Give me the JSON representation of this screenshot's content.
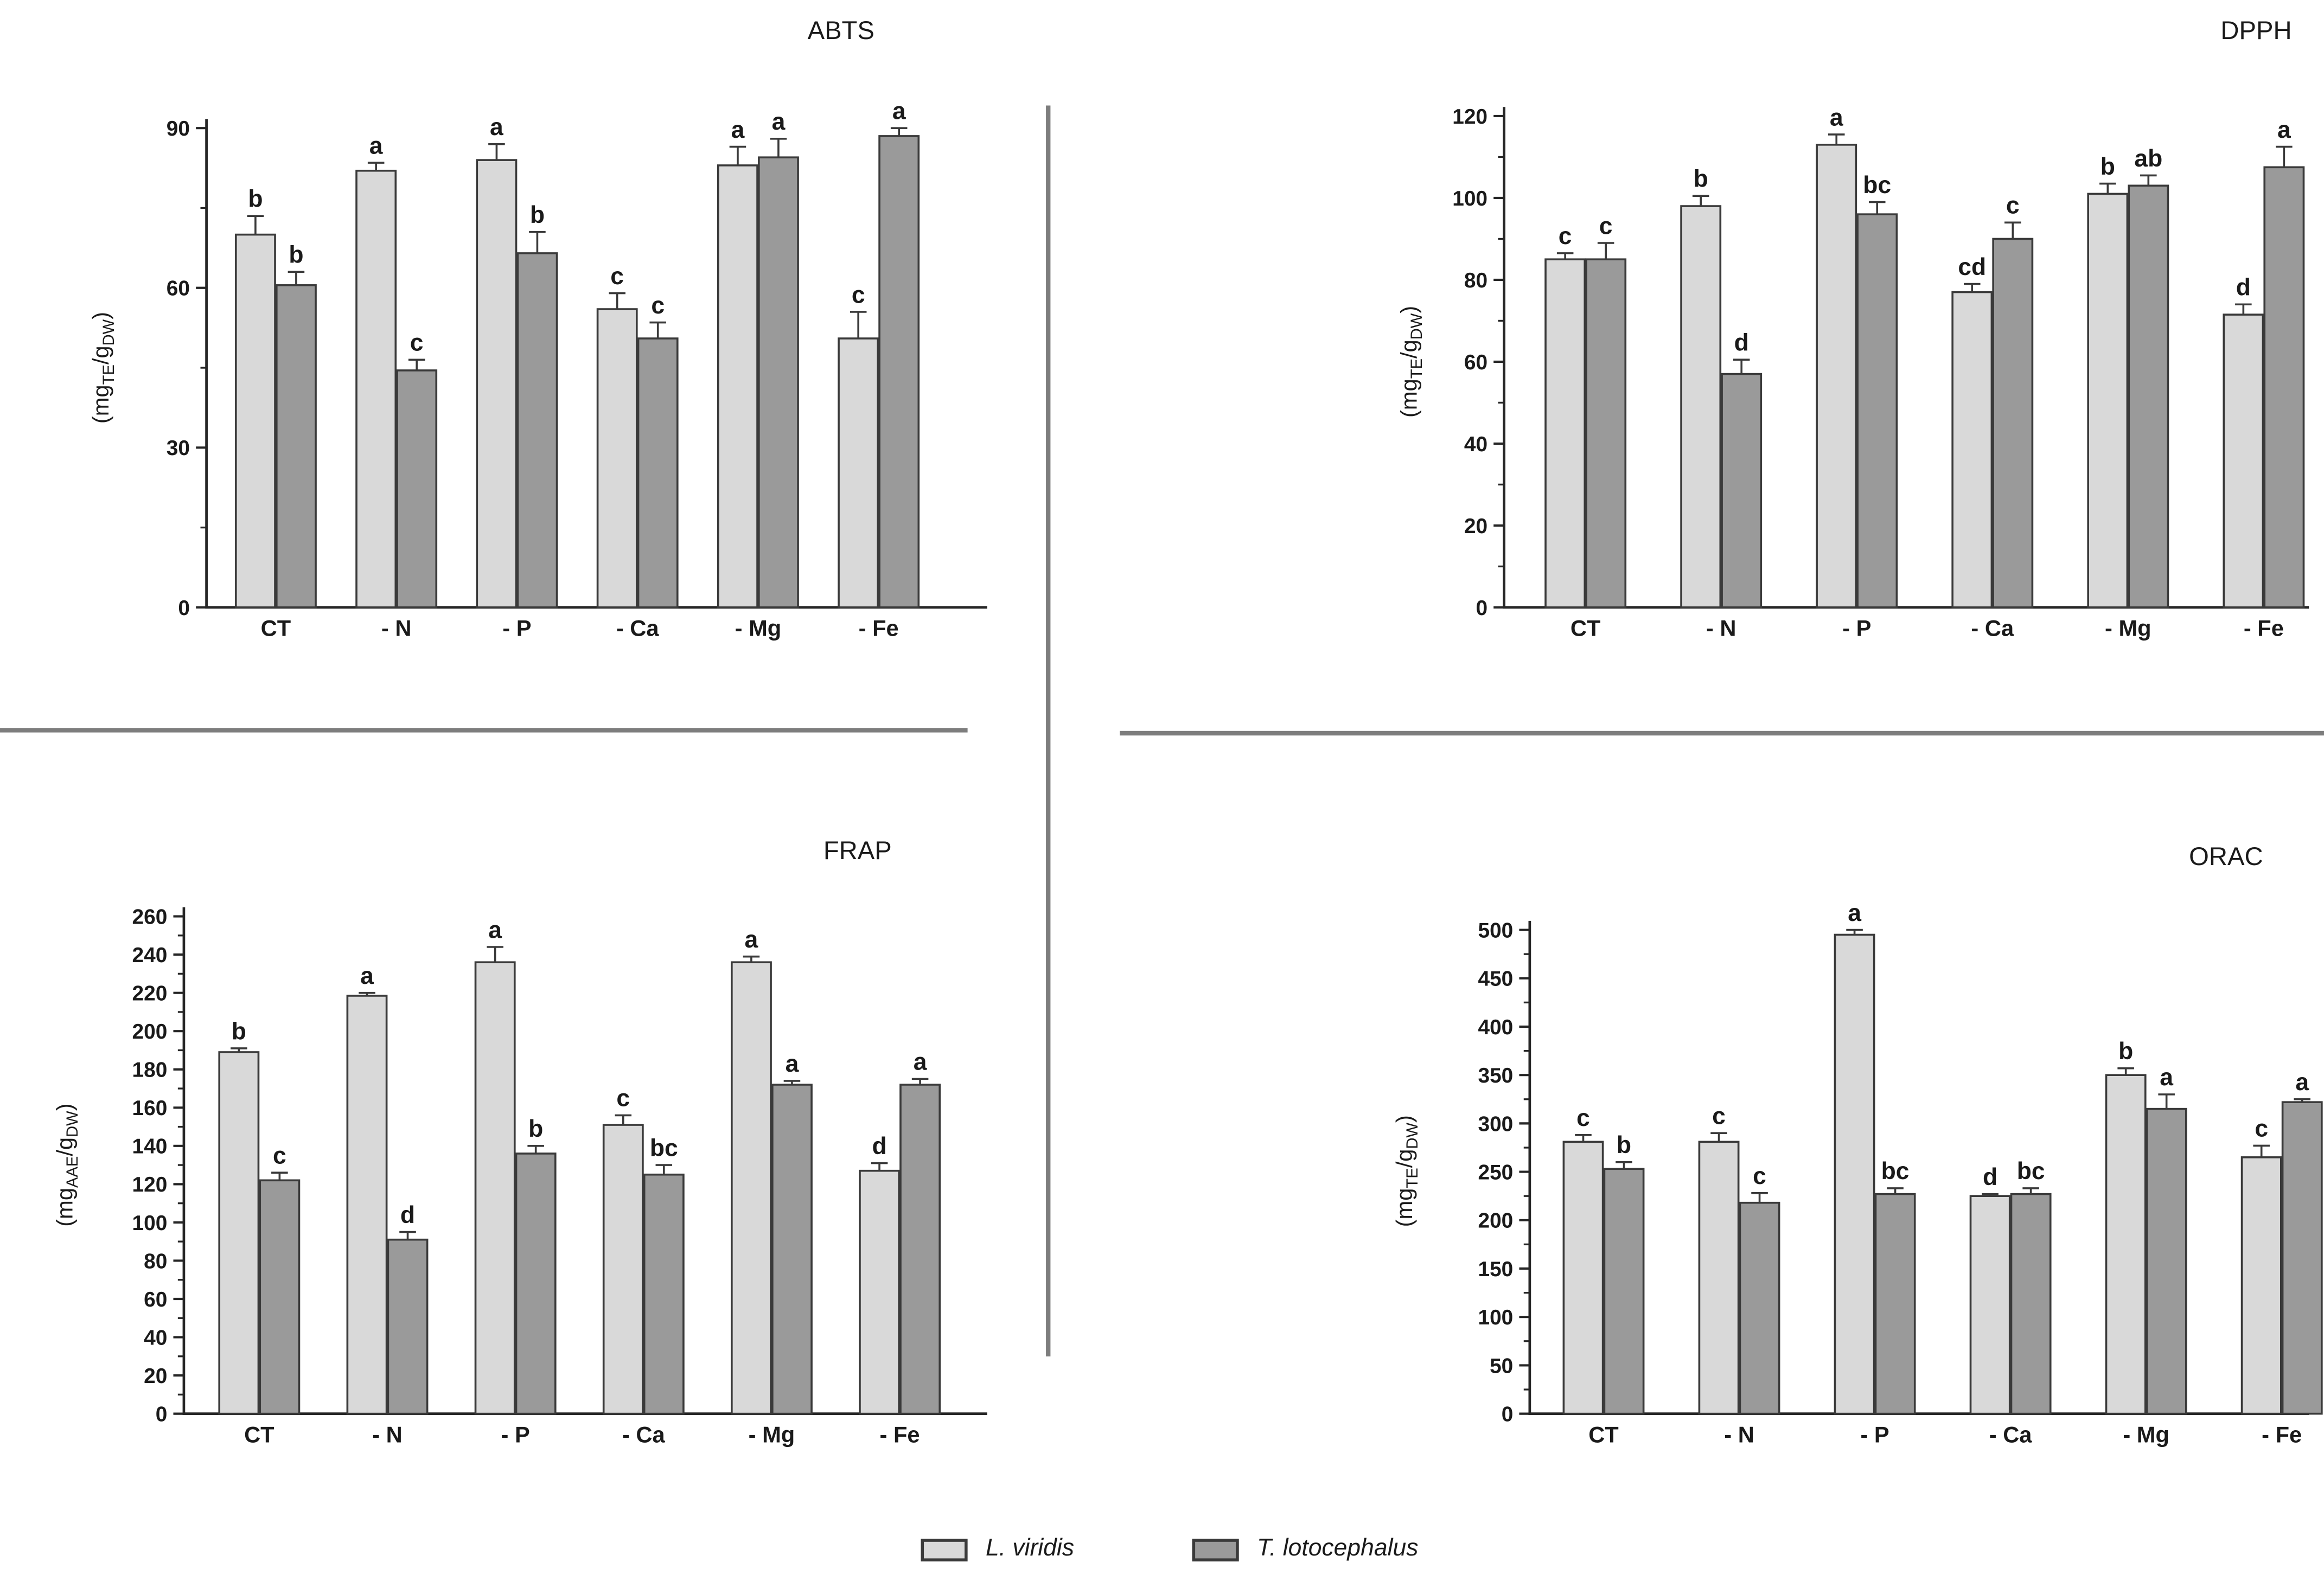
{
  "figure": {
    "background": "#ffffff",
    "bar_fill_light": "#d9d9d9",
    "bar_fill_dark": "#9a9a9a",
    "bar_border_color": "#3a3a3a",
    "axis_color": "#262626",
    "text_color": "#1a1a1a",
    "divider_color": "#7d7d7d"
  },
  "legend": {
    "items": [
      {
        "label": "L. viridis",
        "color": "#d9d9d9"
      },
      {
        "label": "T. lotocephalus",
        "color": "#9a9a9a"
      }
    ]
  },
  "chart_data": [
    {
      "id": "abts",
      "type": "bar",
      "title": "ABTS",
      "ylabel_parts": [
        {
          "text": "(mg"
        },
        {
          "text": "TE",
          "sub": true
        },
        {
          "text": "/g"
        },
        {
          "text": "DW",
          "sub": true
        },
        {
          "text": ")"
        }
      ],
      "categories": [
        "CT",
        "- N",
        "- P",
        "- Ca",
        "- Mg",
        "- Fe"
      ],
      "ylim": [
        0,
        90
      ],
      "ytick_step": 30,
      "ytick_minor": 15,
      "grid": false,
      "legend_position": "none",
      "series": [
        {
          "name": "L. viridis",
          "values": [
            70,
            82,
            84,
            56,
            83,
            50.5
          ],
          "errors": [
            3.5,
            1.5,
            3,
            3,
            3.5,
            5
          ],
          "letters": [
            "b",
            "a",
            "a",
            "c",
            "a",
            "c"
          ]
        },
        {
          "name": "T. lotocephalus",
          "values": [
            60.5,
            44.5,
            66.5,
            50.5,
            84.5,
            88.5
          ],
          "errors": [
            2.5,
            2,
            4,
            3,
            3.5,
            1.5
          ],
          "letters": [
            "b",
            "c",
            "b",
            "c",
            "a",
            "a"
          ]
        }
      ]
    },
    {
      "id": "dpph",
      "type": "bar",
      "title": "DPPH",
      "ylabel_parts": [
        {
          "text": "(mg"
        },
        {
          "text": "TE",
          "sub": true
        },
        {
          "text": "/g"
        },
        {
          "text": "DW",
          "sub": true
        },
        {
          "text": ")"
        }
      ],
      "categories": [
        "CT",
        "- N",
        "- P",
        "- Ca",
        "- Mg",
        "- Fe"
      ],
      "ylim": [
        0,
        120
      ],
      "ytick_step": 20,
      "ytick_minor": 10,
      "grid": false,
      "legend_position": "none",
      "series": [
        {
          "name": "L. viridis",
          "values": [
            85,
            98,
            113,
            77,
            101,
            71.5
          ],
          "errors": [
            1.5,
            2.5,
            2.5,
            2,
            2.5,
            2.5
          ],
          "letters": [
            "c",
            "b",
            "a",
            "cd",
            "b",
            "d"
          ]
        },
        {
          "name": "T. lotocephalus",
          "values": [
            85,
            57,
            96,
            90,
            103,
            107.5
          ],
          "errors": [
            4,
            3.5,
            3,
            4,
            2.5,
            5
          ],
          "letters": [
            "c",
            "d",
            "bc",
            "c",
            "ab",
            "a"
          ]
        }
      ]
    },
    {
      "id": "frap",
      "type": "bar",
      "title": "FRAP",
      "ylabel_parts": [
        {
          "text": "(mg"
        },
        {
          "text": "AAE",
          "sub": true
        },
        {
          "text": "/g"
        },
        {
          "text": "DW",
          "sub": true
        },
        {
          "text": ")"
        }
      ],
      "categories": [
        "CT",
        "- N",
        "- P",
        "- Ca",
        "- Mg",
        "- Fe"
      ],
      "ylim": [
        0,
        260
      ],
      "ytick_step": 20,
      "ytick_minor": 10,
      "grid": false,
      "legend_position": "none",
      "series": [
        {
          "name": "L. viridis",
          "values": [
            189,
            218.5,
            236,
            151,
            236,
            127
          ],
          "errors": [
            2,
            1.5,
            8,
            5,
            3,
            4
          ],
          "letters": [
            "b",
            "a",
            "a",
            "c",
            "a",
            "d"
          ]
        },
        {
          "name": "T. lotocephalus",
          "values": [
            122,
            91,
            136,
            125,
            172,
            172
          ],
          "errors": [
            4,
            4,
            4,
            5,
            2,
            3
          ],
          "letters": [
            "c",
            "d",
            "b",
            "bc",
            "a",
            "a"
          ]
        }
      ]
    },
    {
      "id": "orac",
      "type": "bar",
      "title": "ORAC",
      "ylabel_parts": [
        {
          "text": "(mg"
        },
        {
          "text": "TE",
          "sub": true
        },
        {
          "text": "/g"
        },
        {
          "text": "DW",
          "sub": true
        },
        {
          "text": ")"
        }
      ],
      "categories": [
        "CT",
        "- N",
        "- P",
        "- Ca",
        "- Mg",
        "- Fe"
      ],
      "ylim": [
        0,
        500
      ],
      "ytick_step": 50,
      "ytick_minor": 25,
      "grid": false,
      "legend_position": "none",
      "series": [
        {
          "name": "L. viridis",
          "values": [
            281,
            281,
            495,
            225,
            350,
            265
          ],
          "errors": [
            7,
            9,
            5,
            2,
            7,
            12
          ],
          "letters": [
            "c",
            "c",
            "a",
            "d",
            "b",
            "c"
          ]
        },
        {
          "name": "T. lotocephalus",
          "values": [
            253,
            218,
            227,
            227,
            315,
            322
          ],
          "errors": [
            7,
            10,
            6,
            6,
            15,
            3
          ],
          "letters": [
            "b",
            "c",
            "bc",
            "bc",
            "a",
            "a"
          ]
        }
      ]
    }
  ]
}
